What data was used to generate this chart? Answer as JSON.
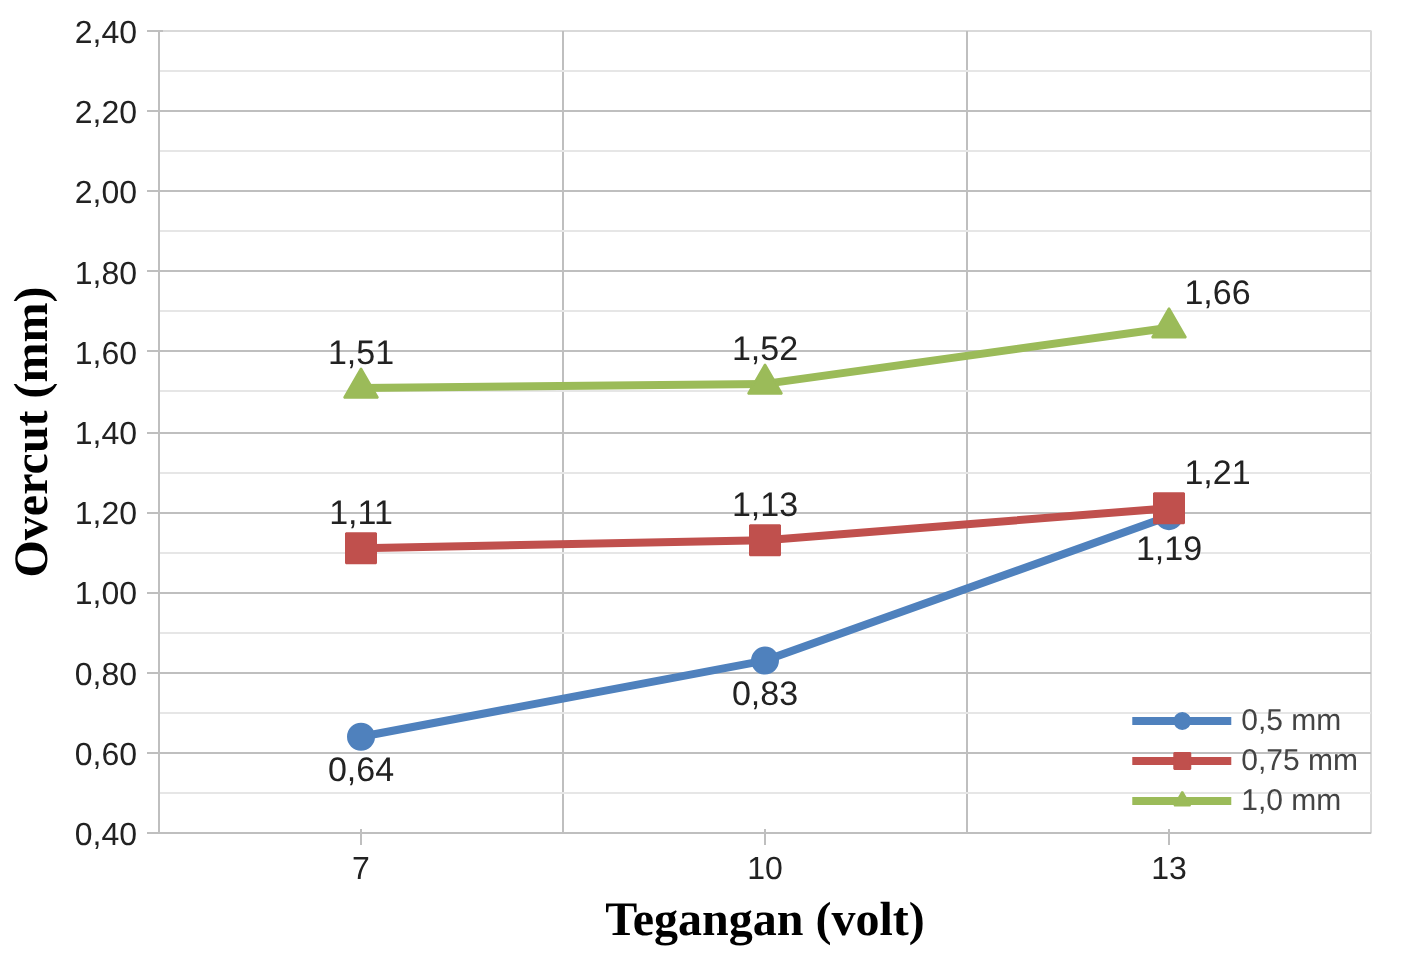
{
  "chart_data": {
    "type": "line",
    "xlabel": "Tegangan (volt)",
    "ylabel": "Overcut (mm)",
    "categories": [
      "7",
      "10",
      "13"
    ],
    "ylim": [
      0.4,
      2.4
    ],
    "yticks": [
      {
        "value": 0.4,
        "label": "0,40"
      },
      {
        "value": 0.6,
        "label": "0,60"
      },
      {
        "value": 0.8,
        "label": "0,80"
      },
      {
        "value": 1.0,
        "label": "1,00"
      },
      {
        "value": 1.2,
        "label": "1,20"
      },
      {
        "value": 1.4,
        "label": "1,40"
      },
      {
        "value": 1.6,
        "label": "1,60"
      },
      {
        "value": 1.8,
        "label": "1,80"
      },
      {
        "value": 2.0,
        "label": "2,00"
      },
      {
        "value": 2.2,
        "label": "2,20"
      },
      {
        "value": 2.4,
        "label": "2,40"
      }
    ],
    "grid": true,
    "legend": "bottom right",
    "line_style": "solid",
    "series": [
      {
        "name": "0,5 mm",
        "color": "#4f81bd",
        "marker": "circle",
        "values": [
          0.64,
          0.83,
          1.19
        ],
        "value_labels": [
          "0,64",
          "0,83",
          "1,19"
        ]
      },
      {
        "name": "0,75 mm",
        "color": "#c0504d",
        "marker": "square",
        "values": [
          1.11,
          1.13,
          1.21
        ],
        "value_labels": [
          "1,11",
          "1,13",
          "1,21"
        ]
      },
      {
        "name": "1,0 mm",
        "color": "#9bbb59",
        "marker": "triangle",
        "values": [
          1.51,
          1.52,
          1.66
        ],
        "value_labels": [
          "1,51",
          "1,52",
          "1,66"
        ]
      }
    ]
  }
}
